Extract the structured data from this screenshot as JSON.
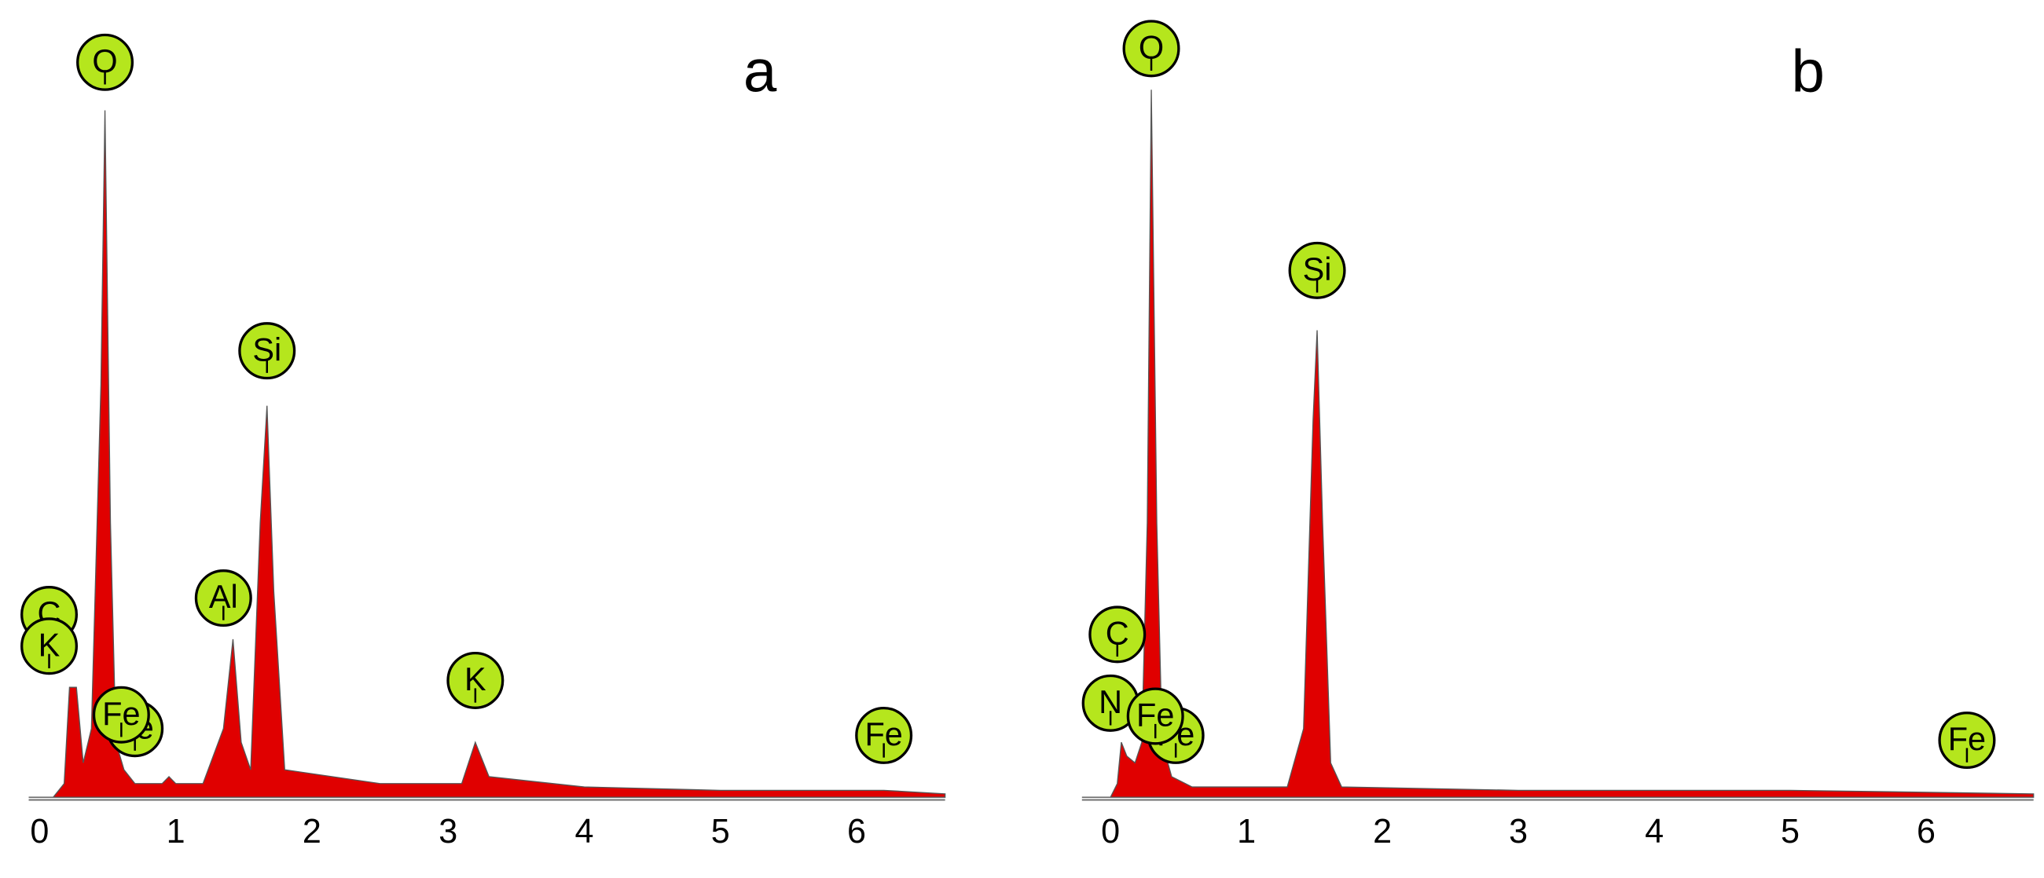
{
  "chart_data": [
    {
      "type": "area",
      "panel_label": "a",
      "xlim": [
        -0.08,
        6.65
      ],
      "xticks": [
        0,
        1,
        2,
        3,
        4,
        5,
        6
      ],
      "ylim": [
        0,
        110
      ],
      "series": [
        {
          "color": "#e00000",
          "x": [
            -0.08,
            0.1,
            0.18,
            0.22,
            0.27,
            0.32,
            0.38,
            0.45,
            0.48,
            0.52,
            0.56,
            0.62,
            0.7,
            0.9,
            0.95,
            1.0,
            1.2,
            1.35,
            1.42,
            1.48,
            1.55,
            1.62,
            1.67,
            1.72,
            1.8,
            2.5,
            3.1,
            3.2,
            3.3,
            4,
            5,
            6.2,
            6.65
          ],
          "values": [
            0,
            0,
            2,
            16,
            16,
            5,
            10,
            60,
            100,
            40,
            8,
            4,
            2,
            2,
            3,
            2,
            2,
            10,
            23,
            8,
            4,
            40,
            57,
            30,
            4,
            2,
            2,
            8,
            3,
            1.5,
            1,
            1,
            0.5
          ]
        }
      ],
      "annotations": [
        {
          "text": "O",
          "x": 0.48,
          "y": 107
        },
        {
          "text": "C",
          "x": 0.07,
          "y": 26.6
        },
        {
          "text": "K",
          "x": 0.07,
          "y": 22
        },
        {
          "text": "Al",
          "x": 1.35,
          "y": 29
        },
        {
          "text": "Si",
          "x": 1.67,
          "y": 65
        },
        {
          "text": "Fe",
          "x": 0.7,
          "y": 10
        },
        {
          "text": "Fe",
          "x": 0.6,
          "y": 12
        },
        {
          "text": "K",
          "x": 3.2,
          "y": 17
        },
        {
          "text": "Fe",
          "x": 6.2,
          "y": 9
        }
      ]
    },
    {
      "type": "area",
      "panel_label": "b",
      "xlim": [
        -0.21,
        6.79
      ],
      "xticks": [
        0,
        1,
        2,
        3,
        4,
        5,
        6
      ],
      "ylim": [
        0,
        110
      ],
      "series": [
        {
          "color": "#e00000",
          "x": [
            -0.21,
            0.0,
            0.05,
            0.08,
            0.12,
            0.18,
            0.23,
            0.27,
            0.3,
            0.34,
            0.38,
            0.45,
            0.6,
            1.3,
            1.42,
            1.49,
            1.52,
            1.56,
            1.62,
            1.7,
            3,
            5,
            6.79
          ],
          "values": [
            0,
            0,
            2,
            8,
            6,
            5,
            8,
            40,
            103,
            40,
            8,
            3,
            1.5,
            1.5,
            10,
            55,
            68,
            40,
            5,
            1.5,
            1,
            1,
            0.5
          ]
        }
      ],
      "annotations": [
        {
          "text": "O",
          "x": 0.3,
          "y": 109
        },
        {
          "text": "Si",
          "x": 1.52,
          "y": 76.7
        },
        {
          "text": "C",
          "x": 0.05,
          "y": 23.7
        },
        {
          "text": "N",
          "x": 0.0,
          "y": 13.7
        },
        {
          "text": "Fe",
          "x": 0.48,
          "y": 9
        },
        {
          "text": "Fe",
          "x": 0.33,
          "y": 11.8
        },
        {
          "text": "Fe",
          "x": 6.3,
          "y": 8.3
        }
      ]
    }
  ]
}
